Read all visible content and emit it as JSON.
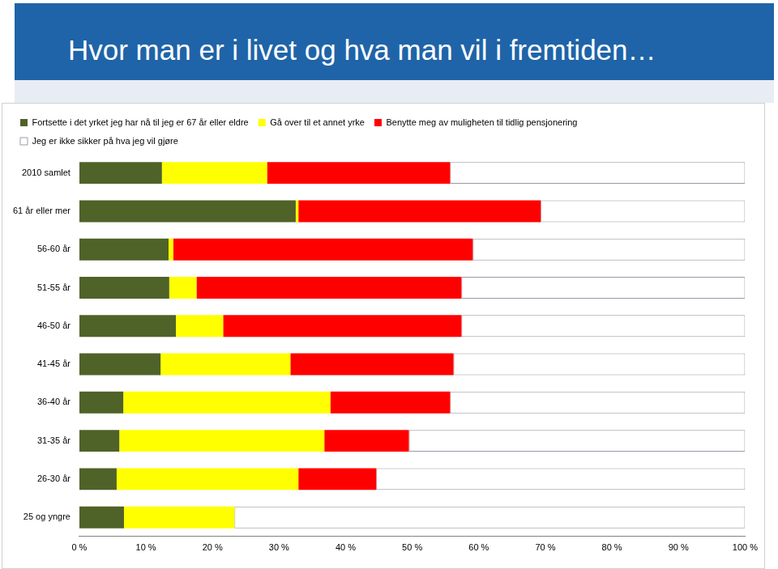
{
  "chart_data": {
    "type": "bar",
    "title": "Hvor man er i livet og hva man vil i fremtiden…",
    "orientation": "horizontal",
    "stacked": true,
    "legend": "top",
    "grid": false,
    "categories": [
      "2010 samlet",
      "61 år eller mer",
      "56-60 år",
      "51-55 år",
      "46-50 år",
      "41-45 år",
      "36-40 år",
      "31-35 år",
      "26-30 år",
      "25 og yngre"
    ],
    "series": [
      {
        "name": "Fortsette i det yrket jeg har nå til jeg er 67 år eller eldre",
        "color": "#4f6228",
        "values": [
          12.4,
          32.5,
          13.4,
          13.5,
          14.5,
          12.2,
          6.6,
          6.0,
          5.6,
          6.7
        ]
      },
      {
        "name": "Gå over til et annet yrke",
        "color": "#ffff00",
        "values": [
          15.8,
          0.4,
          0.7,
          4.1,
          7.1,
          19.5,
          31.1,
          30.8,
          27.3,
          16.6
        ]
      },
      {
        "name": "Benytte meg av muligheten til tidlig pensjonering",
        "color": "#ff0000",
        "values": [
          27.5,
          36.4,
          45.0,
          39.8,
          35.8,
          24.5,
          18.0,
          12.7,
          11.7,
          0
        ]
      },
      {
        "name": "Jeg er ikke sikker på hva jeg vil gjøre",
        "color": "#ffffff",
        "values": [
          44.3,
          30.7,
          40.9,
          42.6,
          42.6,
          43.8,
          44.3,
          50.5,
          55.4,
          76.7
        ]
      }
    ],
    "xlim": [
      0,
      100
    ],
    "xticks": [
      {
        "value": 0,
        "label": "0 %"
      },
      {
        "value": 10,
        "label": "10 %"
      },
      {
        "value": 20,
        "label": "20 %"
      },
      {
        "value": 30,
        "label": "30 %"
      },
      {
        "value": 40,
        "label": "40 %"
      },
      {
        "value": 50,
        "label": "50 %"
      },
      {
        "value": 60,
        "label": "60 %"
      },
      {
        "value": 70,
        "label": "70 %"
      },
      {
        "value": 80,
        "label": "80 %"
      },
      {
        "value": 90,
        "label": "90 %"
      },
      {
        "value": 100,
        "label": "100 %"
      }
    ]
  }
}
